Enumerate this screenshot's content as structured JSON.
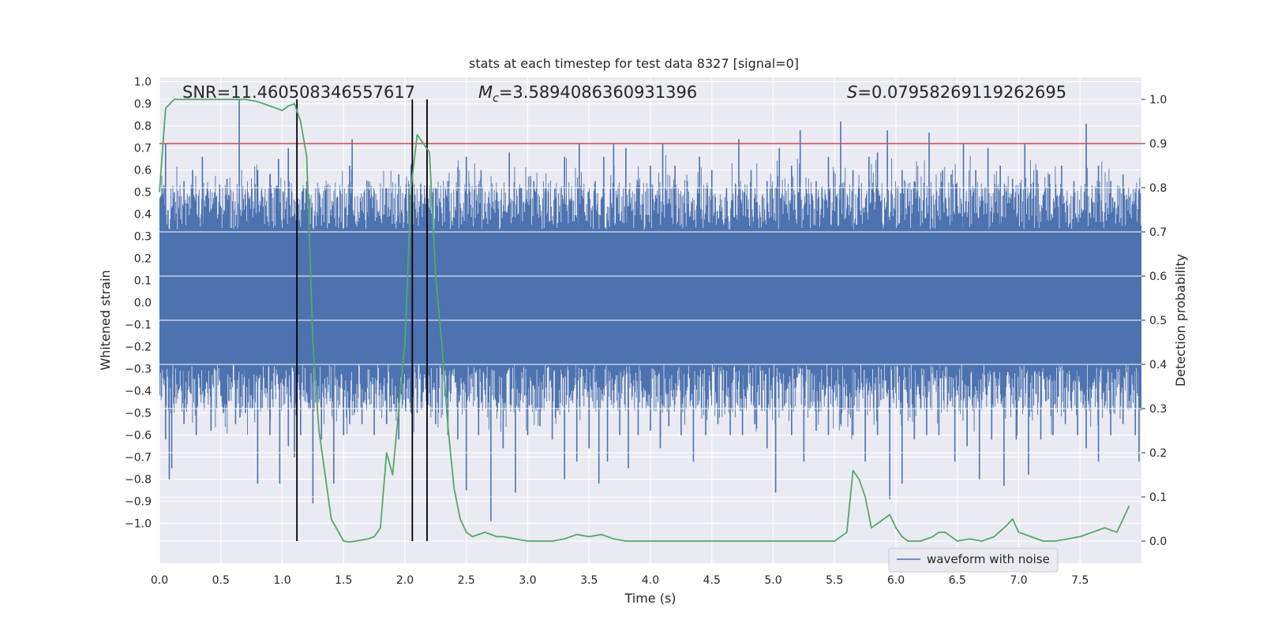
{
  "chart_data": {
    "type": "line",
    "title": "stats at each timestep for test data 8327 [signal=0]",
    "xlabel": "Time (s)",
    "ylabel_left": "Whitened strain",
    "ylabel_right": "Detection probability",
    "xlim": [
      0.0,
      8.0
    ],
    "ylim_left": [
      -1.18,
      1.02
    ],
    "ylim_right": [
      -0.05,
      1.05
    ],
    "xticks": [
      "0.0",
      "0.5",
      "1.0",
      "1.5",
      "2.0",
      "2.5",
      "3.0",
      "3.5",
      "4.0",
      "4.5",
      "5.0",
      "5.5",
      "6.0",
      "6.5",
      "7.0",
      "7.5"
    ],
    "yticks_left": [
      "1.0",
      "0.9",
      "0.8",
      "0.7",
      "0.6",
      "0.5",
      "0.4",
      "0.3",
      "0.2",
      "0.1",
      "0.0",
      "−0.1",
      "−0.2",
      "−0.3",
      "−0.4",
      "−0.5",
      "−0.6",
      "−0.7",
      "−0.8",
      "−0.9",
      "−1.0"
    ],
    "yticks_right": [
      "1.0",
      "0.9",
      "0.8",
      "0.7",
      "0.6",
      "0.5",
      "0.4",
      "0.3",
      "0.2",
      "0.1",
      "0.0"
    ],
    "grid": true,
    "annotations": {
      "snr_label": "SNR=11.460508346557617",
      "mc_label": "=3.5894086360931396",
      "mc_symbol": "M",
      "mc_sub": "c",
      "s_symbol": "S",
      "s_label": "=0.07958269119262695"
    },
    "threshold": {
      "value": 0.9,
      "axis": "right",
      "color": "#c44e52"
    },
    "vlines": [
      1.12,
      2.06,
      2.18
    ],
    "waveform": {
      "name": "waveform with noise",
      "color": "#4c72b0",
      "dense_range": [
        -0.28,
        0.33
      ],
      "spikes_up": [
        [
          0.05,
          0.72
        ],
        [
          0.12,
          0.5
        ],
        [
          0.2,
          0.55
        ],
        [
          0.27,
          0.6
        ],
        [
          0.35,
          0.66
        ],
        [
          0.45,
          0.5
        ],
        [
          0.55,
          0.56
        ],
        [
          0.65,
          0.92
        ],
        [
          0.72,
          0.5
        ],
        [
          0.8,
          0.6
        ],
        [
          0.9,
          0.58
        ],
        [
          0.97,
          0.65
        ],
        [
          1.05,
          0.7
        ],
        [
          1.2,
          0.55
        ],
        [
          1.3,
          0.5
        ],
        [
          1.45,
          0.48
        ],
        [
          1.55,
          0.62
        ],
        [
          1.57,
          0.74
        ],
        [
          1.7,
          0.55
        ],
        [
          1.85,
          0.52
        ],
        [
          1.95,
          0.58
        ],
        [
          2.05,
          0.62
        ],
        [
          2.25,
          0.52
        ],
        [
          2.35,
          0.55
        ],
        [
          2.5,
          0.66
        ],
        [
          2.62,
          0.6
        ],
        [
          2.75,
          0.5
        ],
        [
          2.85,
          0.68
        ],
        [
          2.95,
          0.52
        ],
        [
          3.05,
          0.55
        ],
        [
          3.15,
          0.52
        ],
        [
          3.3,
          0.66
        ],
        [
          3.42,
          0.72
        ],
        [
          3.55,
          0.55
        ],
        [
          3.62,
          0.66
        ],
        [
          3.7,
          0.72
        ],
        [
          3.8,
          0.7
        ],
        [
          3.9,
          0.55
        ],
        [
          4.0,
          0.62
        ],
        [
          4.1,
          0.72
        ],
        [
          4.2,
          0.62
        ],
        [
          4.3,
          0.55
        ],
        [
          4.4,
          0.66
        ],
        [
          4.5,
          0.6
        ],
        [
          4.62,
          0.52
        ],
        [
          4.72,
          0.74
        ],
        [
          4.82,
          0.6
        ],
        [
          4.95,
          0.55
        ],
        [
          5.05,
          0.7
        ],
        [
          5.15,
          0.62
        ],
        [
          5.22,
          0.78
        ],
        [
          5.35,
          0.55
        ],
        [
          5.45,
          0.66
        ],
        [
          5.55,
          0.82
        ],
        [
          5.65,
          0.6
        ],
        [
          5.78,
          0.66
        ],
        [
          5.85,
          0.68
        ],
        [
          5.93,
          0.78
        ],
        [
          6.05,
          0.6
        ],
        [
          6.15,
          0.55
        ],
        [
          6.27,
          0.77
        ],
        [
          6.38,
          0.6
        ],
        [
          6.45,
          0.58
        ],
        [
          6.55,
          0.72
        ],
        [
          6.65,
          0.6
        ],
        [
          6.75,
          0.7
        ],
        [
          6.85,
          0.62
        ],
        [
          6.95,
          0.56
        ],
        [
          7.05,
          0.72
        ],
        [
          7.15,
          0.6
        ],
        [
          7.25,
          0.58
        ],
        [
          7.35,
          0.62
        ],
        [
          7.45,
          0.55
        ],
        [
          7.55,
          0.81
        ],
        [
          7.65,
          0.62
        ],
        [
          7.75,
          0.55
        ],
        [
          7.85,
          0.58
        ],
        [
          7.95,
          0.5
        ]
      ],
      "spikes_down": [
        [
          0.05,
          -0.62
        ],
        [
          0.08,
          -0.8
        ],
        [
          0.1,
          -0.75
        ],
        [
          0.2,
          -0.55
        ],
        [
          0.3,
          -0.6
        ],
        [
          0.42,
          -0.58
        ],
        [
          0.52,
          -0.5
        ],
        [
          0.62,
          -0.55
        ],
        [
          0.7,
          -0.5
        ],
        [
          0.8,
          -0.82
        ],
        [
          0.9,
          -0.6
        ],
        [
          0.98,
          -0.82
        ],
        [
          1.05,
          -0.65
        ],
        [
          1.1,
          -0.7
        ],
        [
          1.15,
          -0.6
        ],
        [
          1.25,
          -0.91
        ],
        [
          1.32,
          -0.62
        ],
        [
          1.42,
          -0.82
        ],
        [
          1.5,
          -0.6
        ],
        [
          1.55,
          -0.55
        ],
        [
          1.65,
          -0.55
        ],
        [
          1.75,
          -0.6
        ],
        [
          1.85,
          -0.55
        ],
        [
          1.95,
          -0.62
        ],
        [
          2.1,
          -0.5
        ],
        [
          2.25,
          -0.55
        ],
        [
          2.35,
          -0.6
        ],
        [
          2.43,
          -0.62
        ],
        [
          2.5,
          -0.85
        ],
        [
          2.6,
          -0.6
        ],
        [
          2.7,
          -0.99
        ],
        [
          2.8,
          -0.66
        ],
        [
          2.9,
          -0.86
        ],
        [
          3.0,
          -0.6
        ],
        [
          3.1,
          -0.56
        ],
        [
          3.2,
          -0.62
        ],
        [
          3.3,
          -0.8
        ],
        [
          3.4,
          -0.72
        ],
        [
          3.5,
          -0.66
        ],
        [
          3.58,
          -0.82
        ],
        [
          3.65,
          -0.72
        ],
        [
          3.75,
          -0.6
        ],
        [
          3.82,
          -0.75
        ],
        [
          3.9,
          -0.6
        ],
        [
          4.0,
          -0.58
        ],
        [
          4.08,
          -0.66
        ],
        [
          4.15,
          -0.56
        ],
        [
          4.25,
          -0.6
        ],
        [
          4.35,
          -0.72
        ],
        [
          4.45,
          -0.6
        ],
        [
          4.55,
          -0.55
        ],
        [
          4.65,
          -0.6
        ],
        [
          4.75,
          -0.6
        ],
        [
          4.85,
          -0.55
        ],
        [
          4.95,
          -0.66
        ],
        [
          5.02,
          -0.86
        ],
        [
          5.15,
          -0.6
        ],
        [
          5.25,
          -0.72
        ],
        [
          5.35,
          -0.58
        ],
        [
          5.45,
          -0.6
        ],
        [
          5.55,
          -0.55
        ],
        [
          5.65,
          -0.6
        ],
        [
          5.75,
          -0.72
        ],
        [
          5.85,
          -0.6
        ],
        [
          5.95,
          -0.89
        ],
        [
          6.05,
          -0.82
        ],
        [
          6.15,
          -0.62
        ],
        [
          6.25,
          -0.6
        ],
        [
          6.35,
          -0.6
        ],
        [
          6.48,
          -0.72
        ],
        [
          6.58,
          -0.65
        ],
        [
          6.68,
          -0.8
        ],
        [
          6.78,
          -0.62
        ],
        [
          6.88,
          -0.83
        ],
        [
          6.98,
          -0.62
        ],
        [
          7.08,
          -0.78
        ],
        [
          7.18,
          -0.62
        ],
        [
          7.28,
          -0.6
        ],
        [
          7.38,
          -0.55
        ],
        [
          7.48,
          -0.6
        ],
        [
          7.55,
          -0.66
        ],
        [
          7.65,
          -0.72
        ],
        [
          7.75,
          -0.6
        ],
        [
          7.85,
          -0.55
        ],
        [
          7.95,
          -0.6
        ],
        [
          7.98,
          -0.72
        ]
      ]
    },
    "probability": {
      "color": "#55a868",
      "axis": "right",
      "x": [
        0.0,
        0.05,
        0.12,
        0.2,
        0.3,
        0.45,
        0.6,
        0.7,
        0.8,
        0.9,
        1.0,
        1.05,
        1.1,
        1.15,
        1.2,
        1.25,
        1.3,
        1.4,
        1.5,
        1.55,
        1.6,
        1.7,
        1.75,
        1.8,
        1.85,
        1.9,
        1.95,
        2.0,
        2.05,
        2.1,
        2.15,
        2.2,
        2.25,
        2.3,
        2.35,
        2.4,
        2.45,
        2.5,
        2.55,
        2.6,
        2.65,
        2.7,
        2.75,
        2.8,
        2.9,
        3.0,
        3.2,
        3.3,
        3.4,
        3.5,
        3.6,
        3.7,
        3.8,
        4.0,
        4.2,
        4.4,
        4.6,
        4.8,
        5.0,
        5.2,
        5.4,
        5.5,
        5.6,
        5.65,
        5.7,
        5.75,
        5.8,
        5.85,
        5.9,
        5.95,
        6.0,
        6.05,
        6.1,
        6.2,
        6.3,
        6.35,
        6.4,
        6.5,
        6.6,
        6.7,
        6.8,
        6.9,
        6.95,
        7.0,
        7.1,
        7.2,
        7.3,
        7.5,
        7.6,
        7.65,
        7.7,
        7.8,
        7.9
      ],
      "y": [
        0.79,
        0.98,
        1.0,
        1.0,
        1.0,
        1.0,
        1.0,
        1.0,
        0.995,
        0.985,
        0.975,
        0.985,
        0.99,
        0.95,
        0.87,
        0.45,
        0.25,
        0.05,
        0.0,
        -0.002,
        0.0,
        0.005,
        0.01,
        0.03,
        0.2,
        0.15,
        0.3,
        0.45,
        0.8,
        0.92,
        0.9,
        0.88,
        0.6,
        0.45,
        0.26,
        0.12,
        0.05,
        0.02,
        0.01,
        0.015,
        0.02,
        0.015,
        0.01,
        0.01,
        0.005,
        0.0,
        0.0,
        0.005,
        0.015,
        0.01,
        0.015,
        0.005,
        0.0,
        0.0,
        0.0,
        0.0,
        0.0,
        0.0,
        0.0,
        0.0,
        0.0,
        0.0,
        0.02,
        0.16,
        0.14,
        0.1,
        0.03,
        0.04,
        0.05,
        0.06,
        0.03,
        0.01,
        0.0,
        0.0,
        0.01,
        0.02,
        0.02,
        0.0,
        0.005,
        0.0,
        0.01,
        0.035,
        0.05,
        0.02,
        0.01,
        0.0,
        0.0,
        0.01,
        0.02,
        0.025,
        0.03,
        0.02,
        0.08
      ]
    },
    "legend": {
      "label": "waveform with noise",
      "loc": "lower-right"
    }
  }
}
